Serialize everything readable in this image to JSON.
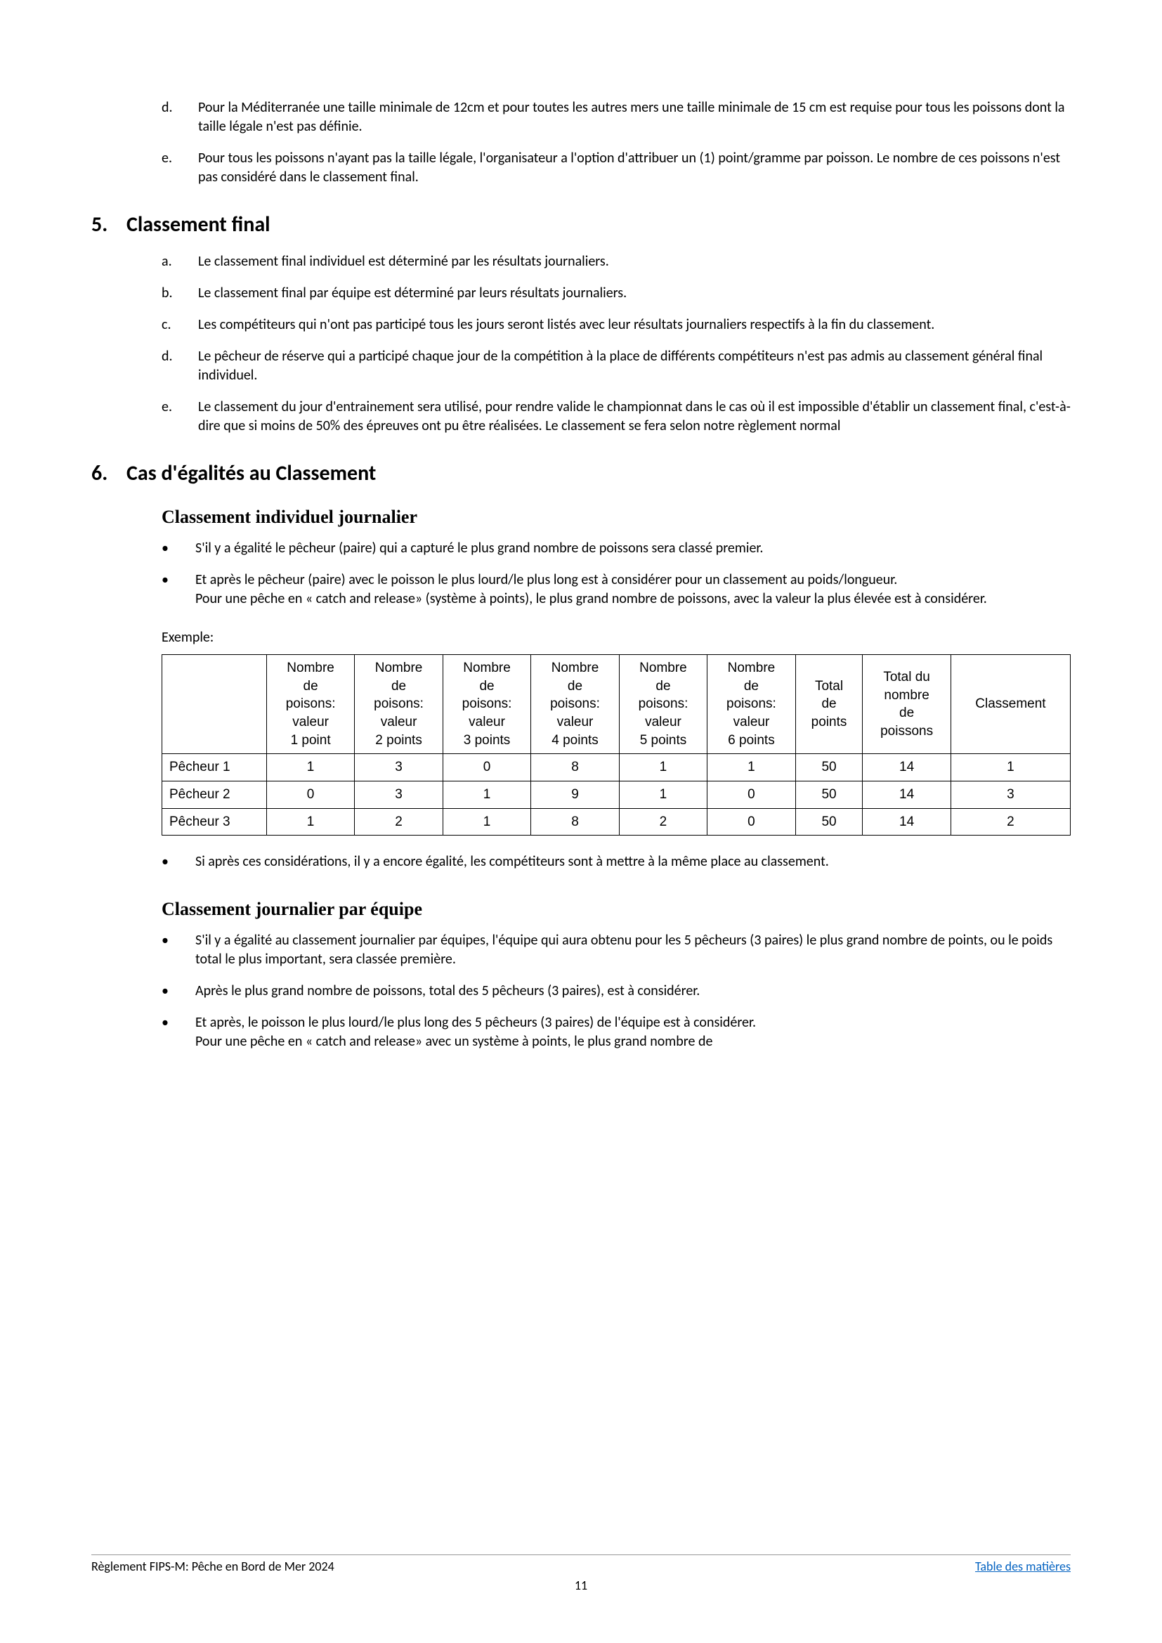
{
  "items_top": {
    "d": "Pour la Méditerranée une taille minimale de 12cm et pour toutes les autres mers une taille minimale de 15 cm est requise pour tous les poissons dont la taille légale n'est pas définie.",
    "e": "Pour tous les poissons n'ayant pas la taille légale, l'organisateur a l'option d'attribuer un (1) point/gramme par poisson. Le nombre de ces poissons n'est pas considéré dans le classement final."
  },
  "section5": {
    "num": "5.",
    "title": "Classement final",
    "a": "Le classement final individuel est déterminé par les résultats journaliers.",
    "b": "Le classement final par équipe est déterminé par leurs résultats journaliers.",
    "c": "Les compétiteurs qui n'ont pas participé tous les jours seront listés avec leur résultats journaliers respectifs à la fin du classement.",
    "d": "Le pêcheur de réserve qui a participé chaque jour de la compétition à la place de différents compétiteurs n'est pas admis au classement général final individuel.",
    "e": "Le classement du jour d'entrainement sera utilisé, pour rendre valide le championnat dans le cas où il est impossible d'établir un classement final, c'est-à-dire que si moins de 50% des épreuves ont pu être réalisées. Le classement se fera selon notre règlement normal"
  },
  "section6": {
    "num": "6.",
    "title": "Cas d'égalités au Classement",
    "sub1": "Classement individuel journalier",
    "s1_b1": "S'il y a égalité le pêcheur (paire) qui a capturé le plus grand nombre de poissons sera classé premier.",
    "s1_b2a": "Et après le pêcheur (paire) avec le poisson le plus lourd/le plus long est à considérer pour un classement au poids/longueur.",
    "s1_b2b": "Pour une pêche en « catch and release» (système à points), le plus grand nombre de poissons, avec la valeur la plus élevée est à considérer.",
    "example_label": "Exemple:",
    "s1_b3": "Si après ces considérations, il y a encore égalité, les compétiteurs sont à mettre à la même place au classement.",
    "sub2": "Classement journalier par équipe",
    "s2_b1": "S'il y a égalité au classement journalier par équipes, l'équipe qui aura obtenu pour les 5 pêcheurs (3 paires) le plus grand nombre de points, ou le poids total le plus important, sera classée première.",
    "s2_b2": "Après le plus grand nombre de poissons, total des 5 pêcheurs (3 paires), est à considérer.",
    "s2_b3a": "Et après, le poisson le plus lourd/le plus long des 5 pêcheurs (3 paires) de l'équipe est à considérer.",
    "s2_b3b": "Pour une pêche en « catch and release» avec un système à points, le plus grand nombre de"
  },
  "table": {
    "headers": [
      "",
      "Nombre de poisons: valeur 1 point",
      "Nombre de poisons: valeur 2 points",
      "Nombre de poisons: valeur 3 points",
      "Nombre de poisons: valeur 4 points",
      "Nombre de poisons: valeur 5 points",
      "Nombre de poisons: valeur 6 points",
      "Total de points",
      "Total du nombre de poissons",
      "Classement"
    ],
    "rows": [
      [
        "Pêcheur 1",
        "1",
        "3",
        "0",
        "8",
        "1",
        "1",
        "50",
        "14",
        "1"
      ],
      [
        "Pêcheur 2",
        "0",
        "3",
        "1",
        "9",
        "1",
        "0",
        "50",
        "14",
        "3"
      ],
      [
        "Pêcheur 3",
        "1",
        "2",
        "1",
        "8",
        "2",
        "0",
        "50",
        "14",
        "2"
      ]
    ],
    "col_widths": [
      "140",
      "118",
      "118",
      "118",
      "118",
      "118",
      "118",
      "90",
      "118",
      "160"
    ]
  },
  "footer": {
    "left": "Règlement FIPS-M: Pêche en Bord de Mer 2024",
    "right": "Table des matières",
    "page": "11"
  }
}
